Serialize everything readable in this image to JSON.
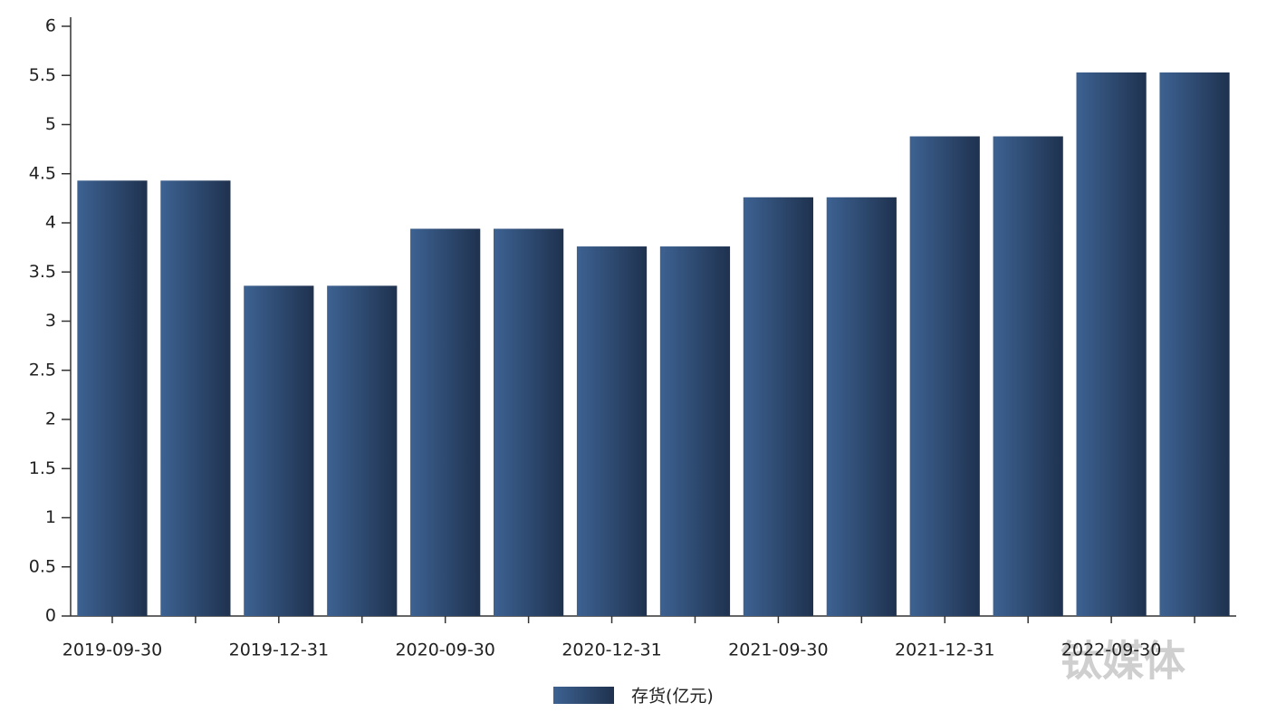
{
  "chart_data": {
    "type": "bar",
    "categories": [
      "2019-09-30",
      null,
      "2019-12-31",
      null,
      "2020-09-30",
      null,
      "2020-12-31",
      null,
      "2021-09-30",
      null,
      "2021-12-31",
      null,
      "2022-09-30",
      null
    ],
    "series": [
      {
        "name": "存货(亿元)",
        "color": "#2c4a73",
        "values": [
          4.43,
          4.43,
          3.36,
          3.36,
          3.94,
          3.94,
          3.76,
          3.76,
          4.26,
          4.26,
          4.88,
          4.88,
          5.53,
          5.53
        ]
      }
    ],
    "ylim": [
      0,
      6
    ],
    "yticks": [
      0,
      0.5,
      1,
      1.5,
      2,
      2.5,
      3,
      3.5,
      4,
      4.5,
      5,
      5.5,
      6
    ],
    "grid": false,
    "legend": "bottom",
    "watermark": "钛媒体"
  }
}
